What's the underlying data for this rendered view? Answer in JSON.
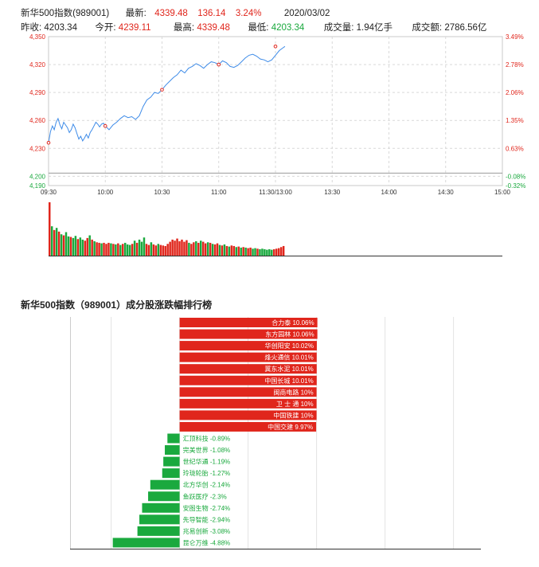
{
  "quote": {
    "name": "新华500指数(989001)",
    "latest_label": "最新:",
    "latest": "4339.48",
    "change": "136.14",
    "change_pct": "3.24%",
    "date": "2020/03/02",
    "prev_close_label": "昨收:",
    "prev_close": "4203.34",
    "open_label": "今开:",
    "open": "4239.11",
    "high_label": "最高:",
    "high": "4339.48",
    "low_label": "最低:",
    "low": "4203.34",
    "volume_label": "成交量:",
    "volume": "1.94亿手",
    "turnover_label": "成交额:",
    "turnover": "2786.56亿"
  },
  "colors": {
    "up": "#e0261c",
    "down": "#1aa93e",
    "line": "#3d8be8",
    "grid": "#d9d9d9"
  },
  "rank_title": "新华500指数（989001）成分股涨跌幅排行榜",
  "chart_data": [
    {
      "type": "line",
      "y_ticks_left": [
        "4,350",
        "4,320",
        "4,290",
        "4,260",
        "4,230",
        "4,200",
        "4,190"
      ],
      "y_ticks_right": [
        "3.49%",
        "2.78%",
        "2.06%",
        "1.35%",
        "0.63%",
        "-0.08%",
        "-0.32%"
      ],
      "x_ticks": [
        "09:30",
        "10:00",
        "10:30",
        "11:00",
        "11:30/13:00",
        "13:30",
        "14:00",
        "14:30",
        "15:00"
      ],
      "ylim": [
        4190,
        4350
      ],
      "prev_close": 4203.34,
      "x_range_minutes": [
        0,
        240
      ],
      "series": [
        {
          "values": [
            [
              0,
              4236
            ],
            [
              1,
              4248
            ],
            [
              2,
              4254
            ],
            [
              3,
              4250
            ],
            [
              4,
              4258
            ],
            [
              5,
              4262
            ],
            [
              6,
              4255
            ],
            [
              7,
              4251
            ],
            [
              8,
              4258
            ],
            [
              9,
              4255
            ],
            [
              10,
              4252
            ],
            [
              11,
              4247
            ],
            [
              12,
              4250
            ],
            [
              13,
              4256
            ],
            [
              14,
              4252
            ],
            [
              15,
              4246
            ],
            [
              16,
              4240
            ],
            [
              17,
              4243
            ],
            [
              18,
              4238
            ],
            [
              19,
              4241
            ],
            [
              20,
              4245
            ],
            [
              21,
              4241
            ],
            [
              22,
              4247
            ],
            [
              23,
              4250
            ],
            [
              24,
              4254
            ],
            [
              25,
              4258
            ],
            [
              26,
              4256
            ],
            [
              27,
              4253
            ],
            [
              28,
              4256
            ],
            [
              29,
              4257
            ],
            [
              30,
              4254
            ],
            [
              32,
              4250
            ],
            [
              34,
              4255
            ],
            [
              36,
              4258
            ],
            [
              38,
              4262
            ],
            [
              40,
              4265
            ],
            [
              42,
              4263
            ],
            [
              44,
              4264
            ],
            [
              46,
              4261
            ],
            [
              48,
              4265
            ],
            [
              50,
              4275
            ],
            [
              52,
              4282
            ],
            [
              54,
              4285
            ],
            [
              56,
              4290
            ],
            [
              58,
              4289
            ],
            [
              60,
              4293
            ],
            [
              62,
              4298
            ],
            [
              64,
              4302
            ],
            [
              66,
              4306
            ],
            [
              68,
              4309
            ],
            [
              70,
              4314
            ],
            [
              72,
              4311
            ],
            [
              74,
              4316
            ],
            [
              76,
              4318
            ],
            [
              78,
              4321
            ],
            [
              80,
              4319
            ],
            [
              82,
              4316
            ],
            [
              84,
              4320
            ],
            [
              86,
              4323
            ],
            [
              88,
              4322
            ],
            [
              90,
              4320
            ],
            [
              92,
              4324
            ],
            [
              94,
              4322
            ],
            [
              96,
              4318
            ],
            [
              98,
              4317
            ],
            [
              100,
              4319
            ],
            [
              102,
              4323
            ],
            [
              104,
              4327
            ],
            [
              106,
              4330
            ],
            [
              108,
              4331
            ],
            [
              110,
              4329
            ],
            [
              112,
              4326
            ],
            [
              114,
              4325
            ],
            [
              116,
              4323
            ],
            [
              118,
              4325
            ],
            [
              120,
              4330
            ],
            [
              122,
              4335
            ],
            [
              124,
              4338
            ],
            [
              125,
              4339.48
            ]
          ]
        }
      ],
      "markers": [
        {
          "x": 0,
          "y": 4236
        },
        {
          "x": 30,
          "y": 4254
        },
        {
          "x": 60,
          "y": 4293
        },
        {
          "x": 90,
          "y": 4320
        },
        {
          "x": 120,
          "y": 4339.48
        }
      ],
      "volume": [
        {
          "v": 100,
          "up": true
        },
        {
          "v": 55,
          "up": false
        },
        {
          "v": 48,
          "up": true
        },
        {
          "v": 52,
          "up": false
        },
        {
          "v": 45,
          "up": true
        },
        {
          "v": 40,
          "up": false
        },
        {
          "v": 38,
          "up": true
        },
        {
          "v": 44,
          "up": false
        },
        {
          "v": 36,
          "up": false
        },
        {
          "v": 35,
          "up": true
        },
        {
          "v": 33,
          "up": false
        },
        {
          "v": 37,
          "up": false
        },
        {
          "v": 31,
          "up": true
        },
        {
          "v": 34,
          "up": false
        },
        {
          "v": 30,
          "up": false
        },
        {
          "v": 28,
          "up": true
        },
        {
          "v": 33,
          "up": true
        },
        {
          "v": 38,
          "up": false
        },
        {
          "v": 30,
          "up": true
        },
        {
          "v": 27,
          "up": false
        },
        {
          "v": 25,
          "up": true
        },
        {
          "v": 24,
          "up": true
        },
        {
          "v": 23,
          "up": false
        },
        {
          "v": 24,
          "up": true
        },
        {
          "v": 22,
          "up": true
        },
        {
          "v": 24,
          "up": true
        },
        {
          "v": 23,
          "up": false
        },
        {
          "v": 22,
          "up": true
        },
        {
          "v": 21,
          "up": false
        },
        {
          "v": 23,
          "up": true
        },
        {
          "v": 20,
          "up": false
        },
        {
          "v": 22,
          "up": true
        },
        {
          "v": 24,
          "up": false
        },
        {
          "v": 21,
          "up": false
        },
        {
          "v": 20,
          "up": false
        },
        {
          "v": 22,
          "up": true
        },
        {
          "v": 28,
          "up": false
        },
        {
          "v": 24,
          "up": true
        },
        {
          "v": 30,
          "up": false
        },
        {
          "v": 26,
          "up": false
        },
        {
          "v": 34,
          "up": false
        },
        {
          "v": 22,
          "up": true
        },
        {
          "v": 20,
          "up": true
        },
        {
          "v": 25,
          "up": false
        },
        {
          "v": 21,
          "up": true
        },
        {
          "v": 19,
          "up": true
        },
        {
          "v": 22,
          "up": false
        },
        {
          "v": 20,
          "up": true
        },
        {
          "v": 19,
          "up": true
        },
        {
          "v": 18,
          "up": true
        },
        {
          "v": 22,
          "up": true
        },
        {
          "v": 26,
          "up": true
        },
        {
          "v": 30,
          "up": true
        },
        {
          "v": 28,
          "up": true
        },
        {
          "v": 32,
          "up": true
        },
        {
          "v": 27,
          "up": true
        },
        {
          "v": 30,
          "up": true
        },
        {
          "v": 26,
          "up": true
        },
        {
          "v": 29,
          "up": true
        },
        {
          "v": 24,
          "up": false
        },
        {
          "v": 22,
          "up": true
        },
        {
          "v": 25,
          "up": true
        },
        {
          "v": 27,
          "up": false
        },
        {
          "v": 24,
          "up": true
        },
        {
          "v": 28,
          "up": false
        },
        {
          "v": 26,
          "up": true
        },
        {
          "v": 23,
          "up": true
        },
        {
          "v": 25,
          "up": false
        },
        {
          "v": 24,
          "up": true
        },
        {
          "v": 22,
          "up": false
        },
        {
          "v": 21,
          "up": true
        },
        {
          "v": 23,
          "up": true
        },
        {
          "v": 20,
          "up": false
        },
        {
          "v": 19,
          "up": true
        },
        {
          "v": 21,
          "up": false
        },
        {
          "v": 18,
          "up": true
        },
        {
          "v": 17,
          "up": false
        },
        {
          "v": 19,
          "up": true
        },
        {
          "v": 18,
          "up": true
        },
        {
          "v": 16,
          "up": false
        },
        {
          "v": 17,
          "up": true
        },
        {
          "v": 15,
          "up": false
        },
        {
          "v": 16,
          "up": true
        },
        {
          "v": 15,
          "up": false
        },
        {
          "v": 14,
          "up": true
        },
        {
          "v": 15,
          "up": true
        },
        {
          "v": 13,
          "up": false
        },
        {
          "v": 14,
          "up": false
        },
        {
          "v": 13,
          "up": true
        },
        {
          "v": 12,
          "up": false
        },
        {
          "v": 13,
          "up": false
        },
        {
          "v": 12,
          "up": false
        },
        {
          "v": 11,
          "up": false
        },
        {
          "v": 12,
          "up": false
        },
        {
          "v": 11,
          "up": false
        },
        {
          "v": 12,
          "up": true
        },
        {
          "v": 13,
          "up": true
        },
        {
          "v": 14,
          "up": true
        },
        {
          "v": 16,
          "up": true
        },
        {
          "v": 18,
          "up": true
        }
      ]
    },
    {
      "type": "bar",
      "orientation": "horizontal",
      "xlim": [
        -8,
        22
      ],
      "gridlines": [
        -5,
        0,
        5,
        10,
        15,
        20
      ],
      "categories": [
        "合力泰",
        "东方园林",
        "华创阳安",
        "烽火通信",
        "冀东水泥",
        "中国长城",
        "闽商电路",
        "卫 士 通",
        "中国铁建",
        "中国交建",
        "汇顶科技",
        "完美世界",
        "世纪华通",
        "玲珑轮胎",
        "北方华创",
        "鱼跃医疗",
        "安图生物",
        "先导智能",
        "兆易创新",
        "昆仑万维"
      ],
      "values": [
        10.06,
        10.06,
        10.02,
        10.01,
        10.01,
        10.01,
        10,
        10,
        10,
        9.97,
        -0.89,
        -1.08,
        -1.19,
        -1.27,
        -2.14,
        -2.3,
        -2.74,
        -2.94,
        -3.08,
        -4.88
      ],
      "labels": [
        "合力泰 10.06%",
        "东方园林 10.06%",
        "华创阳安 10.02%",
        "烽火通信 10.01%",
        "冀东水泥 10.01%",
        "中国长城 10.01%",
        "闽商电路 10%",
        "卫 士 通 10%",
        "中国铁建 10%",
        "中国交建 9.97%",
        "汇顶科技 -0.89%",
        "完美世界 -1.08%",
        "世纪华通 -1.19%",
        "玲珑轮胎 -1.27%",
        "北方华创 -2.14%",
        "鱼跃医疗 -2.3%",
        "安图生物 -2.74%",
        "先导智能 -2.94%",
        "兆易创新 -3.08%",
        "昆仑万维 -4.88%"
      ]
    }
  ]
}
